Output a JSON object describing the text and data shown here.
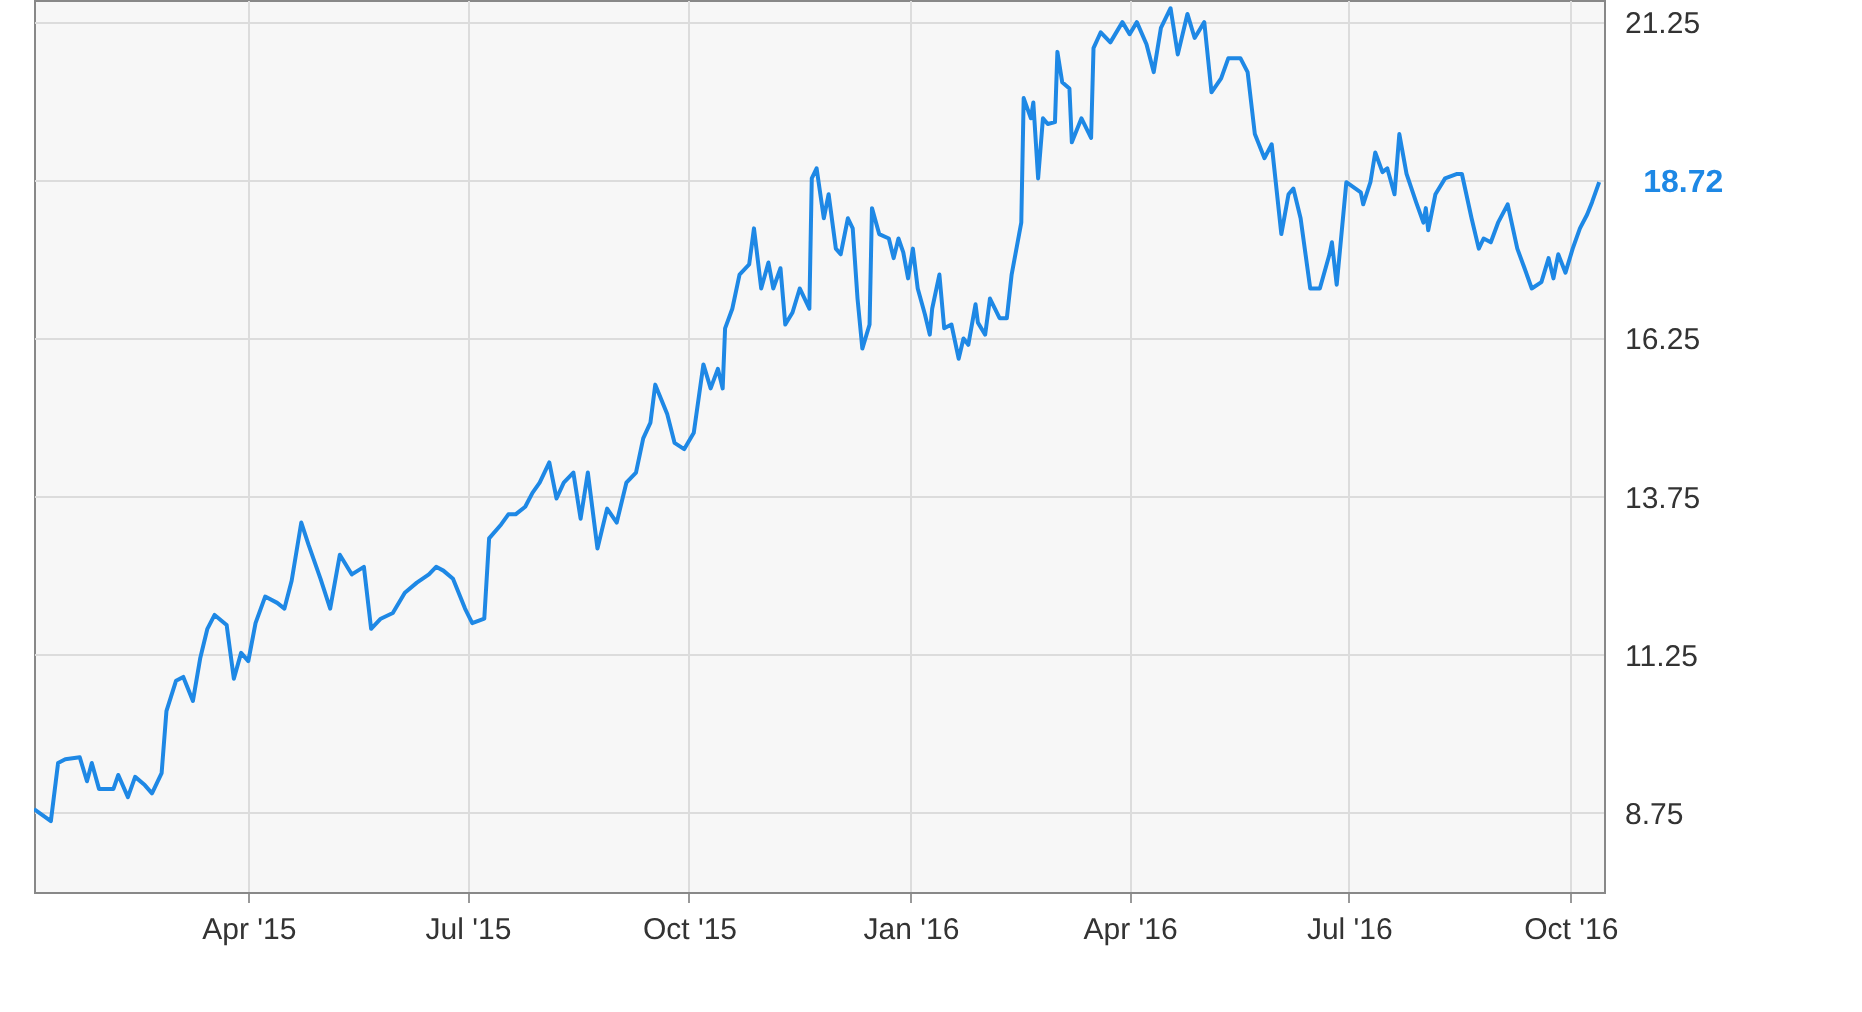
{
  "chart_data": {
    "type": "line",
    "x": [
      "2015-01-02",
      "2015-01-09",
      "2015-01-12",
      "2015-01-15",
      "2015-01-21",
      "2015-01-24",
      "2015-01-26",
      "2015-01-29",
      "2015-02-04",
      "2015-02-06",
      "2015-02-10",
      "2015-02-13",
      "2015-02-17",
      "2015-02-20",
      "2015-02-24",
      "2015-02-26",
      "2015-03-02",
      "2015-03-05",
      "2015-03-09",
      "2015-03-12",
      "2015-03-15",
      "2015-03-18",
      "2015-03-23",
      "2015-03-26",
      "2015-03-29",
      "2015-04-01",
      "2015-04-04",
      "2015-04-08",
      "2015-04-13",
      "2015-04-16",
      "2015-04-19",
      "2015-04-23",
      "2015-04-26",
      "2015-05-01",
      "2015-05-05",
      "2015-05-09",
      "2015-05-14",
      "2015-05-19",
      "2015-05-22",
      "2015-05-26",
      "2015-05-31",
      "2015-06-05",
      "2015-06-10",
      "2015-06-15",
      "2015-06-18",
      "2015-06-21",
      "2015-06-25",
      "2015-06-30",
      "2015-07-03",
      "2015-07-08",
      "2015-07-10",
      "2015-07-15",
      "2015-07-18",
      "2015-07-21",
      "2015-07-25",
      "2015-07-28",
      "2015-07-31",
      "2015-08-04",
      "2015-08-07",
      "2015-08-10",
      "2015-08-14",
      "2015-08-17",
      "2015-08-20",
      "2015-08-24",
      "2015-08-28",
      "2015-09-01",
      "2015-09-05",
      "2015-09-09",
      "2015-09-12",
      "2015-09-15",
      "2015-09-17",
      "2015-09-22",
      "2015-09-25",
      "2015-09-29",
      "2015-10-03",
      "2015-10-07",
      "2015-10-10",
      "2015-10-13",
      "2015-10-15",
      "2015-10-16",
      "2015-10-19",
      "2015-10-22",
      "2015-10-26",
      "2015-10-28",
      "2015-10-31",
      "2015-11-03",
      "2015-11-05",
      "2015-11-08",
      "2015-11-10",
      "2015-11-13",
      "2015-11-16",
      "2015-11-20",
      "2015-11-21",
      "2015-11-23",
      "2015-11-26",
      "2015-11-28",
      "2015-12-01",
      "2015-12-03",
      "2015-12-06",
      "2015-12-08",
      "2015-12-10",
      "2015-12-12",
      "2015-12-15",
      "2015-12-16",
      "2015-12-19",
      "2015-12-23",
      "2015-12-25",
      "2015-12-27",
      "2015-12-29",
      "2015-12-31",
      "2016-01-02",
      "2016-01-04",
      "2016-01-07",
      "2016-01-09",
      "2016-01-10",
      "2016-01-13",
      "2016-01-15",
      "2016-01-18",
      "2016-01-21",
      "2016-01-23",
      "2016-01-25",
      "2016-01-28",
      "2016-01-29",
      "2016-02-01",
      "2016-02-03",
      "2016-02-07",
      "2016-02-10",
      "2016-02-12",
      "2016-02-16",
      "2016-02-17",
      "2016-02-20",
      "2016-02-21",
      "2016-02-23",
      "2016-02-25",
      "2016-02-27",
      "2016-03-01",
      "2016-03-02",
      "2016-03-04",
      "2016-03-07",
      "2016-03-08",
      "2016-03-12",
      "2016-03-16",
      "2016-03-17",
      "2016-03-20",
      "2016-03-24",
      "2016-03-29",
      "2016-04-01",
      "2016-04-04",
      "2016-04-08",
      "2016-04-11",
      "2016-04-14",
      "2016-04-18",
      "2016-04-21",
      "2016-04-25",
      "2016-04-28",
      "2016-05-02",
      "2016-05-05",
      "2016-05-09",
      "2016-05-12",
      "2016-05-17",
      "2016-05-20",
      "2016-05-23",
      "2016-05-27",
      "2016-05-30",
      "2016-06-03",
      "2016-06-06",
      "2016-06-08",
      "2016-06-11",
      "2016-06-15",
      "2016-06-19",
      "2016-06-23",
      "2016-06-24",
      "2016-06-26",
      "2016-06-30",
      "2016-07-06",
      "2016-07-07",
      "2016-07-10",
      "2016-07-12",
      "2016-07-15",
      "2016-07-17",
      "2016-07-20",
      "2016-07-22",
      "2016-07-25",
      "2016-07-29",
      "2016-08-01",
      "2016-08-02",
      "2016-08-03",
      "2016-08-06",
      "2016-08-10",
      "2016-08-15",
      "2016-08-17",
      "2016-08-21",
      "2016-08-24",
      "2016-08-26",
      "2016-08-29",
      "2016-09-01",
      "2016-09-05",
      "2016-09-09",
      "2016-09-12",
      "2016-09-15",
      "2016-09-19",
      "2016-09-22",
      "2016-09-24",
      "2016-09-26",
      "2016-09-29",
      "2016-10-02",
      "2016-10-05",
      "2016-10-08",
      "2016-10-10",
      "2016-10-13"
    ],
    "series": [
      {
        "color": "#1e88e5",
        "values": [
          8.81,
          8.62,
          9.54,
          9.6,
          9.63,
          9.25,
          9.54,
          9.13,
          9.13,
          9.35,
          9.0,
          9.32,
          9.19,
          9.06,
          9.38,
          10.36,
          10.84,
          10.9,
          10.52,
          11.19,
          11.66,
          11.88,
          11.72,
          10.87,
          11.28,
          11.15,
          11.75,
          12.17,
          12.07,
          11.98,
          12.42,
          13.34,
          12.99,
          12.45,
          11.98,
          12.83,
          12.52,
          12.64,
          11.66,
          11.82,
          11.91,
          12.23,
          12.39,
          12.52,
          12.64,
          12.58,
          12.45,
          11.98,
          11.75,
          11.82,
          13.09,
          13.31,
          13.47,
          13.47,
          13.59,
          13.81,
          13.97,
          14.29,
          13.72,
          13.97,
          14.13,
          13.4,
          14.13,
          12.93,
          13.56,
          13.34,
          13.97,
          14.13,
          14.67,
          14.92,
          15.52,
          15.05,
          14.6,
          14.5,
          14.76,
          15.84,
          15.46,
          15.77,
          15.46,
          16.41,
          16.72,
          17.26,
          17.42,
          17.99,
          17.04,
          17.45,
          17.04,
          17.36,
          16.47,
          16.66,
          17.04,
          16.72,
          18.78,
          18.94,
          18.15,
          18.53,
          17.67,
          17.58,
          18.15,
          17.99,
          16.88,
          16.09,
          16.47,
          18.31,
          17.9,
          17.83,
          17.52,
          17.83,
          17.61,
          17.2,
          17.67,
          17.04,
          16.63,
          16.31,
          16.72,
          17.26,
          16.41,
          16.47,
          15.93,
          16.25,
          16.15,
          16.79,
          16.5,
          16.31,
          16.88,
          16.57,
          16.57,
          17.26,
          18.08,
          20.05,
          19.73,
          19.98,
          18.78,
          19.73,
          19.64,
          19.67,
          20.78,
          20.3,
          20.2,
          19.35,
          19.73,
          19.42,
          20.84,
          21.09,
          20.93,
          21.25,
          21.06,
          21.25,
          20.9,
          20.46,
          21.16,
          21.47,
          20.74,
          21.38,
          21.0,
          21.25,
          20.14,
          20.36,
          20.68,
          20.68,
          20.46,
          19.48,
          19.1,
          19.32,
          17.9,
          18.53,
          18.62,
          18.15,
          17.04,
          17.04,
          17.58,
          17.77,
          17.1,
          18.72,
          18.56,
          18.37,
          18.72,
          19.19,
          18.88,
          18.94,
          18.53,
          19.48,
          18.85,
          18.4,
          18.08,
          18.31,
          17.96,
          18.53,
          18.78,
          18.85,
          18.85,
          18.15,
          17.67,
          17.83,
          17.77,
          18.08,
          18.37,
          17.67,
          17.36,
          17.04,
          17.14,
          17.52,
          17.2,
          17.58,
          17.29,
          17.67,
          17.99,
          18.21,
          18.4,
          18.72
        ]
      }
    ],
    "xlim": [
      "2015-01-02",
      "2016-10-15"
    ],
    "xticks": [
      {
        "value": "2015-04-01",
        "label": "Apr '15"
      },
      {
        "value": "2015-07-01",
        "label": "Jul '15"
      },
      {
        "value": "2015-10-01",
        "label": "Oct '15"
      },
      {
        "value": "2016-01-01",
        "label": "Jan '16"
      },
      {
        "value": "2016-04-01",
        "label": "Apr '16"
      },
      {
        "value": "2016-07-01",
        "label": "Jul '16"
      },
      {
        "value": "2016-10-01",
        "label": "Oct '16"
      }
    ],
    "ylim": [
      7.5,
      21.6
    ],
    "yticks": [
      8.75,
      11.25,
      13.75,
      16.25,
      {
        "value": 18.75,
        "label": null
      },
      21.25
    ],
    "grid": true,
    "annotations": [
      {
        "text": "18.72",
        "x": "2016-10-13",
        "y": 18.72
      }
    ]
  }
}
